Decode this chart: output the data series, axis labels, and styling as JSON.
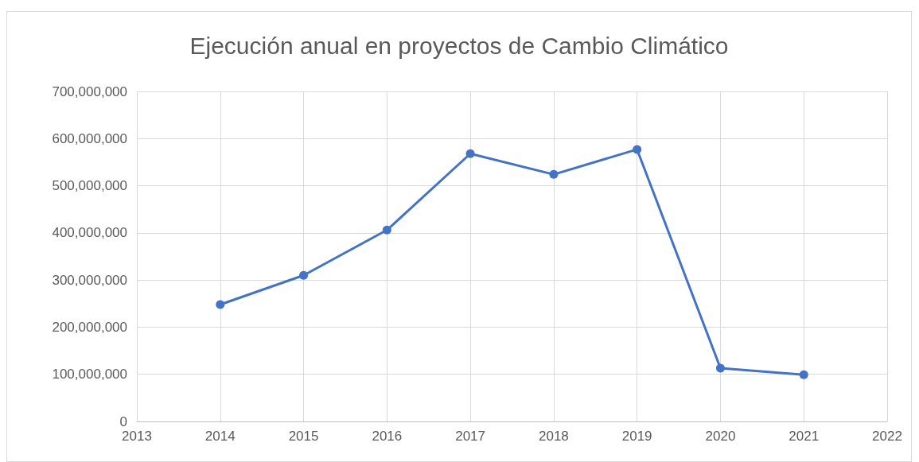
{
  "chart_data": {
    "type": "line",
    "title": "Ejecución anual en proyectos de Cambio Climático",
    "x": [
      2014,
      2015,
      2016,
      2017,
      2018,
      2019,
      2020,
      2021
    ],
    "series": [
      {
        "color": "#4472c4",
        "values": [
          248000000,
          310000000,
          406000000,
          568000000,
          524000000,
          577000000,
          113000000,
          99000000
        ]
      }
    ],
    "xlim": [
      2013,
      2022
    ],
    "xticks": [
      2013,
      2014,
      2015,
      2016,
      2017,
      2018,
      2019,
      2020,
      2021,
      2022
    ],
    "ylim": [
      0,
      700000000
    ],
    "yticks": [
      {
        "value": 0,
        "label": "0"
      },
      {
        "value": 100000000,
        "label": "100,000,000"
      },
      {
        "value": 200000000,
        "label": "200,000,000"
      },
      {
        "value": 300000000,
        "label": "300,000,000"
      },
      {
        "value": 400000000,
        "label": "400,000,000"
      },
      {
        "value": 500000000,
        "label": "500,000,000"
      },
      {
        "value": 600000000,
        "label": "600,000,000"
      },
      {
        "value": 700000000,
        "label": "700,000,000"
      }
    ],
    "grid": true,
    "marker": "circle",
    "line_style": "solid"
  }
}
